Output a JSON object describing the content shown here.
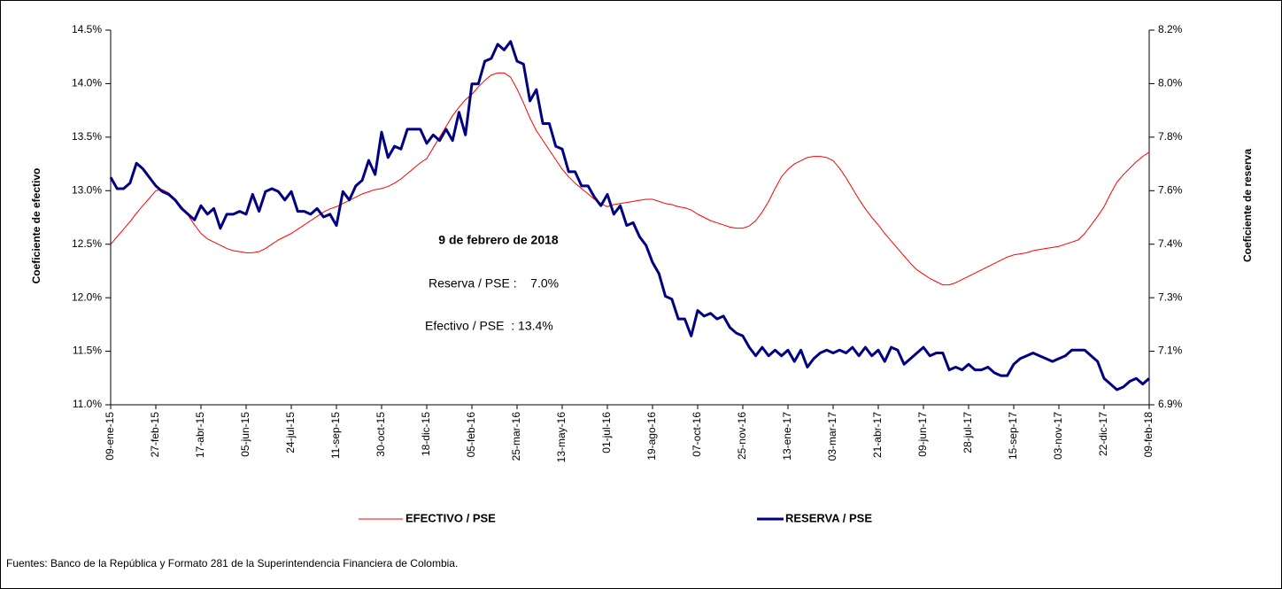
{
  "chart_data": {
    "type": "line",
    "y_label": "Coeficiente de efectivo",
    "y2_label": "Coeficiente de reserva",
    "annotations": [
      "9 de febrero de 2018",
      "Reserva / PSE :    7.0%",
      "Efectivo / PSE  : 13.4%"
    ],
    "source": "Fuentes: Banco de la República y Formato 281 de la Superintendencia Financiera de Colombia.",
    "categories": [
      "09-ene-15",
      null,
      null,
      null,
      null,
      null,
      null,
      "27-feb-15",
      null,
      null,
      null,
      null,
      null,
      null,
      "17-abr-15",
      null,
      null,
      null,
      null,
      null,
      null,
      "05-jun-15",
      null,
      null,
      null,
      null,
      null,
      null,
      "24-jul-15",
      null,
      null,
      null,
      null,
      null,
      null,
      "11-sep-15",
      null,
      null,
      null,
      null,
      null,
      null,
      "30-oct-15",
      null,
      null,
      null,
      null,
      null,
      null,
      "18-dic-15",
      null,
      null,
      null,
      null,
      null,
      null,
      "05-feb-16",
      null,
      null,
      null,
      null,
      null,
      null,
      "25-mar-16",
      null,
      null,
      null,
      null,
      null,
      null,
      "13-may-16",
      null,
      null,
      null,
      null,
      null,
      null,
      "01-jul-16",
      null,
      null,
      null,
      null,
      null,
      null,
      "19-ago-16",
      null,
      null,
      null,
      null,
      null,
      null,
      "07-oct-16",
      null,
      null,
      null,
      null,
      null,
      null,
      "25-nov-16",
      null,
      null,
      null,
      null,
      null,
      null,
      "13-ene-17",
      null,
      null,
      null,
      null,
      null,
      null,
      "03-mar-17",
      null,
      null,
      null,
      null,
      null,
      null,
      "21-abr-17",
      null,
      null,
      null,
      null,
      null,
      null,
      "09-jun-17",
      null,
      null,
      null,
      null,
      null,
      null,
      "28-jul-17",
      null,
      null,
      null,
      null,
      null,
      null,
      "15-sep-17",
      null,
      null,
      null,
      null,
      null,
      null,
      "03-nov-17",
      null,
      null,
      null,
      null,
      null,
      null,
      "22-dic-17",
      null,
      null,
      null,
      null,
      null,
      null,
      "09-feb-18"
    ],
    "series": [
      {
        "name": "EFECTIVO / PSE",
        "color": "#ff0000",
        "axis": "y",
        "values": [
          12.5,
          12.57,
          12.64,
          12.71,
          12.79,
          12.86,
          12.93,
          13.0,
          13.01,
          12.98,
          12.92,
          12.85,
          12.77,
          12.68,
          12.6,
          12.55,
          12.52,
          12.49,
          12.46,
          12.44,
          12.43,
          12.42,
          12.42,
          12.43,
          12.46,
          12.5,
          12.54,
          12.57,
          12.6,
          12.64,
          12.68,
          12.72,
          12.76,
          12.8,
          12.83,
          12.85,
          12.88,
          12.91,
          12.94,
          12.97,
          12.99,
          13.01,
          13.02,
          13.04,
          13.07,
          13.11,
          13.16,
          13.21,
          13.26,
          13.3,
          13.4,
          13.5,
          13.6,
          13.7,
          13.78,
          13.85,
          13.9,
          13.97,
          14.03,
          14.08,
          14.1,
          14.1,
          14.06,
          13.95,
          13.82,
          13.68,
          13.56,
          13.47,
          13.38,
          13.29,
          13.2,
          13.13,
          13.07,
          13.02,
          12.97,
          12.92,
          12.88,
          12.85,
          12.87,
          12.88,
          12.89,
          12.9,
          12.91,
          12.92,
          12.92,
          12.9,
          12.88,
          12.87,
          12.85,
          12.84,
          12.82,
          12.78,
          12.75,
          12.72,
          12.7,
          12.68,
          12.66,
          12.65,
          12.65,
          12.67,
          12.72,
          12.8,
          12.9,
          13.02,
          13.13,
          13.2,
          13.25,
          13.28,
          13.31,
          13.32,
          13.32,
          13.31,
          13.28,
          13.21,
          13.12,
          13.02,
          12.92,
          12.83,
          12.75,
          12.68,
          12.6,
          12.53,
          12.46,
          12.39,
          12.32,
          12.26,
          12.22,
          12.18,
          12.15,
          12.12,
          12.12,
          12.14,
          12.17,
          12.2,
          12.23,
          12.26,
          12.29,
          12.32,
          12.35,
          12.38,
          12.4,
          12.41,
          12.42,
          12.44,
          12.45,
          12.46,
          12.47,
          12.48,
          12.5,
          12.52,
          12.54,
          12.6,
          12.68,
          12.76,
          12.85,
          12.97,
          13.08,
          13.15,
          13.21,
          13.27,
          13.32,
          13.36
        ]
      },
      {
        "name": "RESERVA / PSE",
        "color": "#000080",
        "axis": "y2",
        "values": [
          7.68,
          7.64,
          7.64,
          7.66,
          7.73,
          7.71,
          7.68,
          7.65,
          7.63,
          7.62,
          7.6,
          7.57,
          7.55,
          7.53,
          7.58,
          7.55,
          7.57,
          7.5,
          7.55,
          7.55,
          7.56,
          7.55,
          7.62,
          7.56,
          7.63,
          7.64,
          7.63,
          7.6,
          7.63,
          7.56,
          7.56,
          7.55,
          7.57,
          7.54,
          7.55,
          7.51,
          7.63,
          7.6,
          7.65,
          7.67,
          7.74,
          7.69,
          7.84,
          7.75,
          7.79,
          7.78,
          7.85,
          7.85,
          7.85,
          7.8,
          7.83,
          7.81,
          7.85,
          7.81,
          7.91,
          7.83,
          8.01,
          8.01,
          8.09,
          8.1,
          8.15,
          8.13,
          8.16,
          8.09,
          8.08,
          7.95,
          7.99,
          7.87,
          7.87,
          7.79,
          7.78,
          7.7,
          7.7,
          7.65,
          7.65,
          7.61,
          7.58,
          7.62,
          7.55,
          7.58,
          7.51,
          7.52,
          7.47,
          7.44,
          7.38,
          7.34,
          7.26,
          7.25,
          7.18,
          7.18,
          7.12,
          7.21,
          7.19,
          7.2,
          7.18,
          7.19,
          7.15,
          7.13,
          7.12,
          7.08,
          7.05,
          7.08,
          7.05,
          7.07,
          7.05,
          7.07,
          7.03,
          7.07,
          7.01,
          7.04,
          7.06,
          7.07,
          7.06,
          7.07,
          7.06,
          7.08,
          7.05,
          7.08,
          7.05,
          7.07,
          7.03,
          7.08,
          7.07,
          7.02,
          7.04,
          7.06,
          7.08,
          7.05,
          7.06,
          7.06,
          7.0,
          7.01,
          7.0,
          7.02,
          7.0,
          7.0,
          7.01,
          6.99,
          6.98,
          6.98,
          7.02,
          7.04,
          7.05,
          7.06,
          7.05,
          7.04,
          7.03,
          7.04,
          7.05,
          7.07,
          7.07,
          7.07,
          7.05,
          7.03,
          6.97,
          6.95,
          6.93,
          6.94,
          6.96,
          6.97,
          6.95,
          6.97
        ]
      }
    ],
    "ylim": [
      11,
      14.5
    ],
    "yticks": [
      {
        "value": 11,
        "label": "11.0%"
      },
      {
        "value": 11.5,
        "label": "11.5%"
      },
      {
        "value": 12,
        "label": "12.0%"
      },
      {
        "value": 12.5,
        "label": "12.5%"
      },
      {
        "value": 13,
        "label": "13.0%"
      },
      {
        "value": 13.5,
        "label": "13.5%"
      },
      {
        "value": 14,
        "label": "14.0%"
      },
      {
        "value": 14.5,
        "label": "14.5%"
      }
    ],
    "y2lim": [
      6.877,
      8.2
    ],
    "y2ticks": [
      {
        "value": 6.877,
        "label": "6.9%"
      },
      {
        "value": 7.066,
        "label": "7.1%"
      },
      {
        "value": 7.255,
        "label": "7.3%"
      },
      {
        "value": 7.444,
        "label": "7.4%"
      },
      {
        "value": 7.633,
        "label": "7.6%"
      },
      {
        "value": 7.822,
        "label": "7.8%"
      },
      {
        "value": 8.011,
        "label": "8.0%"
      },
      {
        "value": 8.2,
        "label": "8.2%"
      }
    ],
    "grid": false,
    "legend": "bottom"
  }
}
